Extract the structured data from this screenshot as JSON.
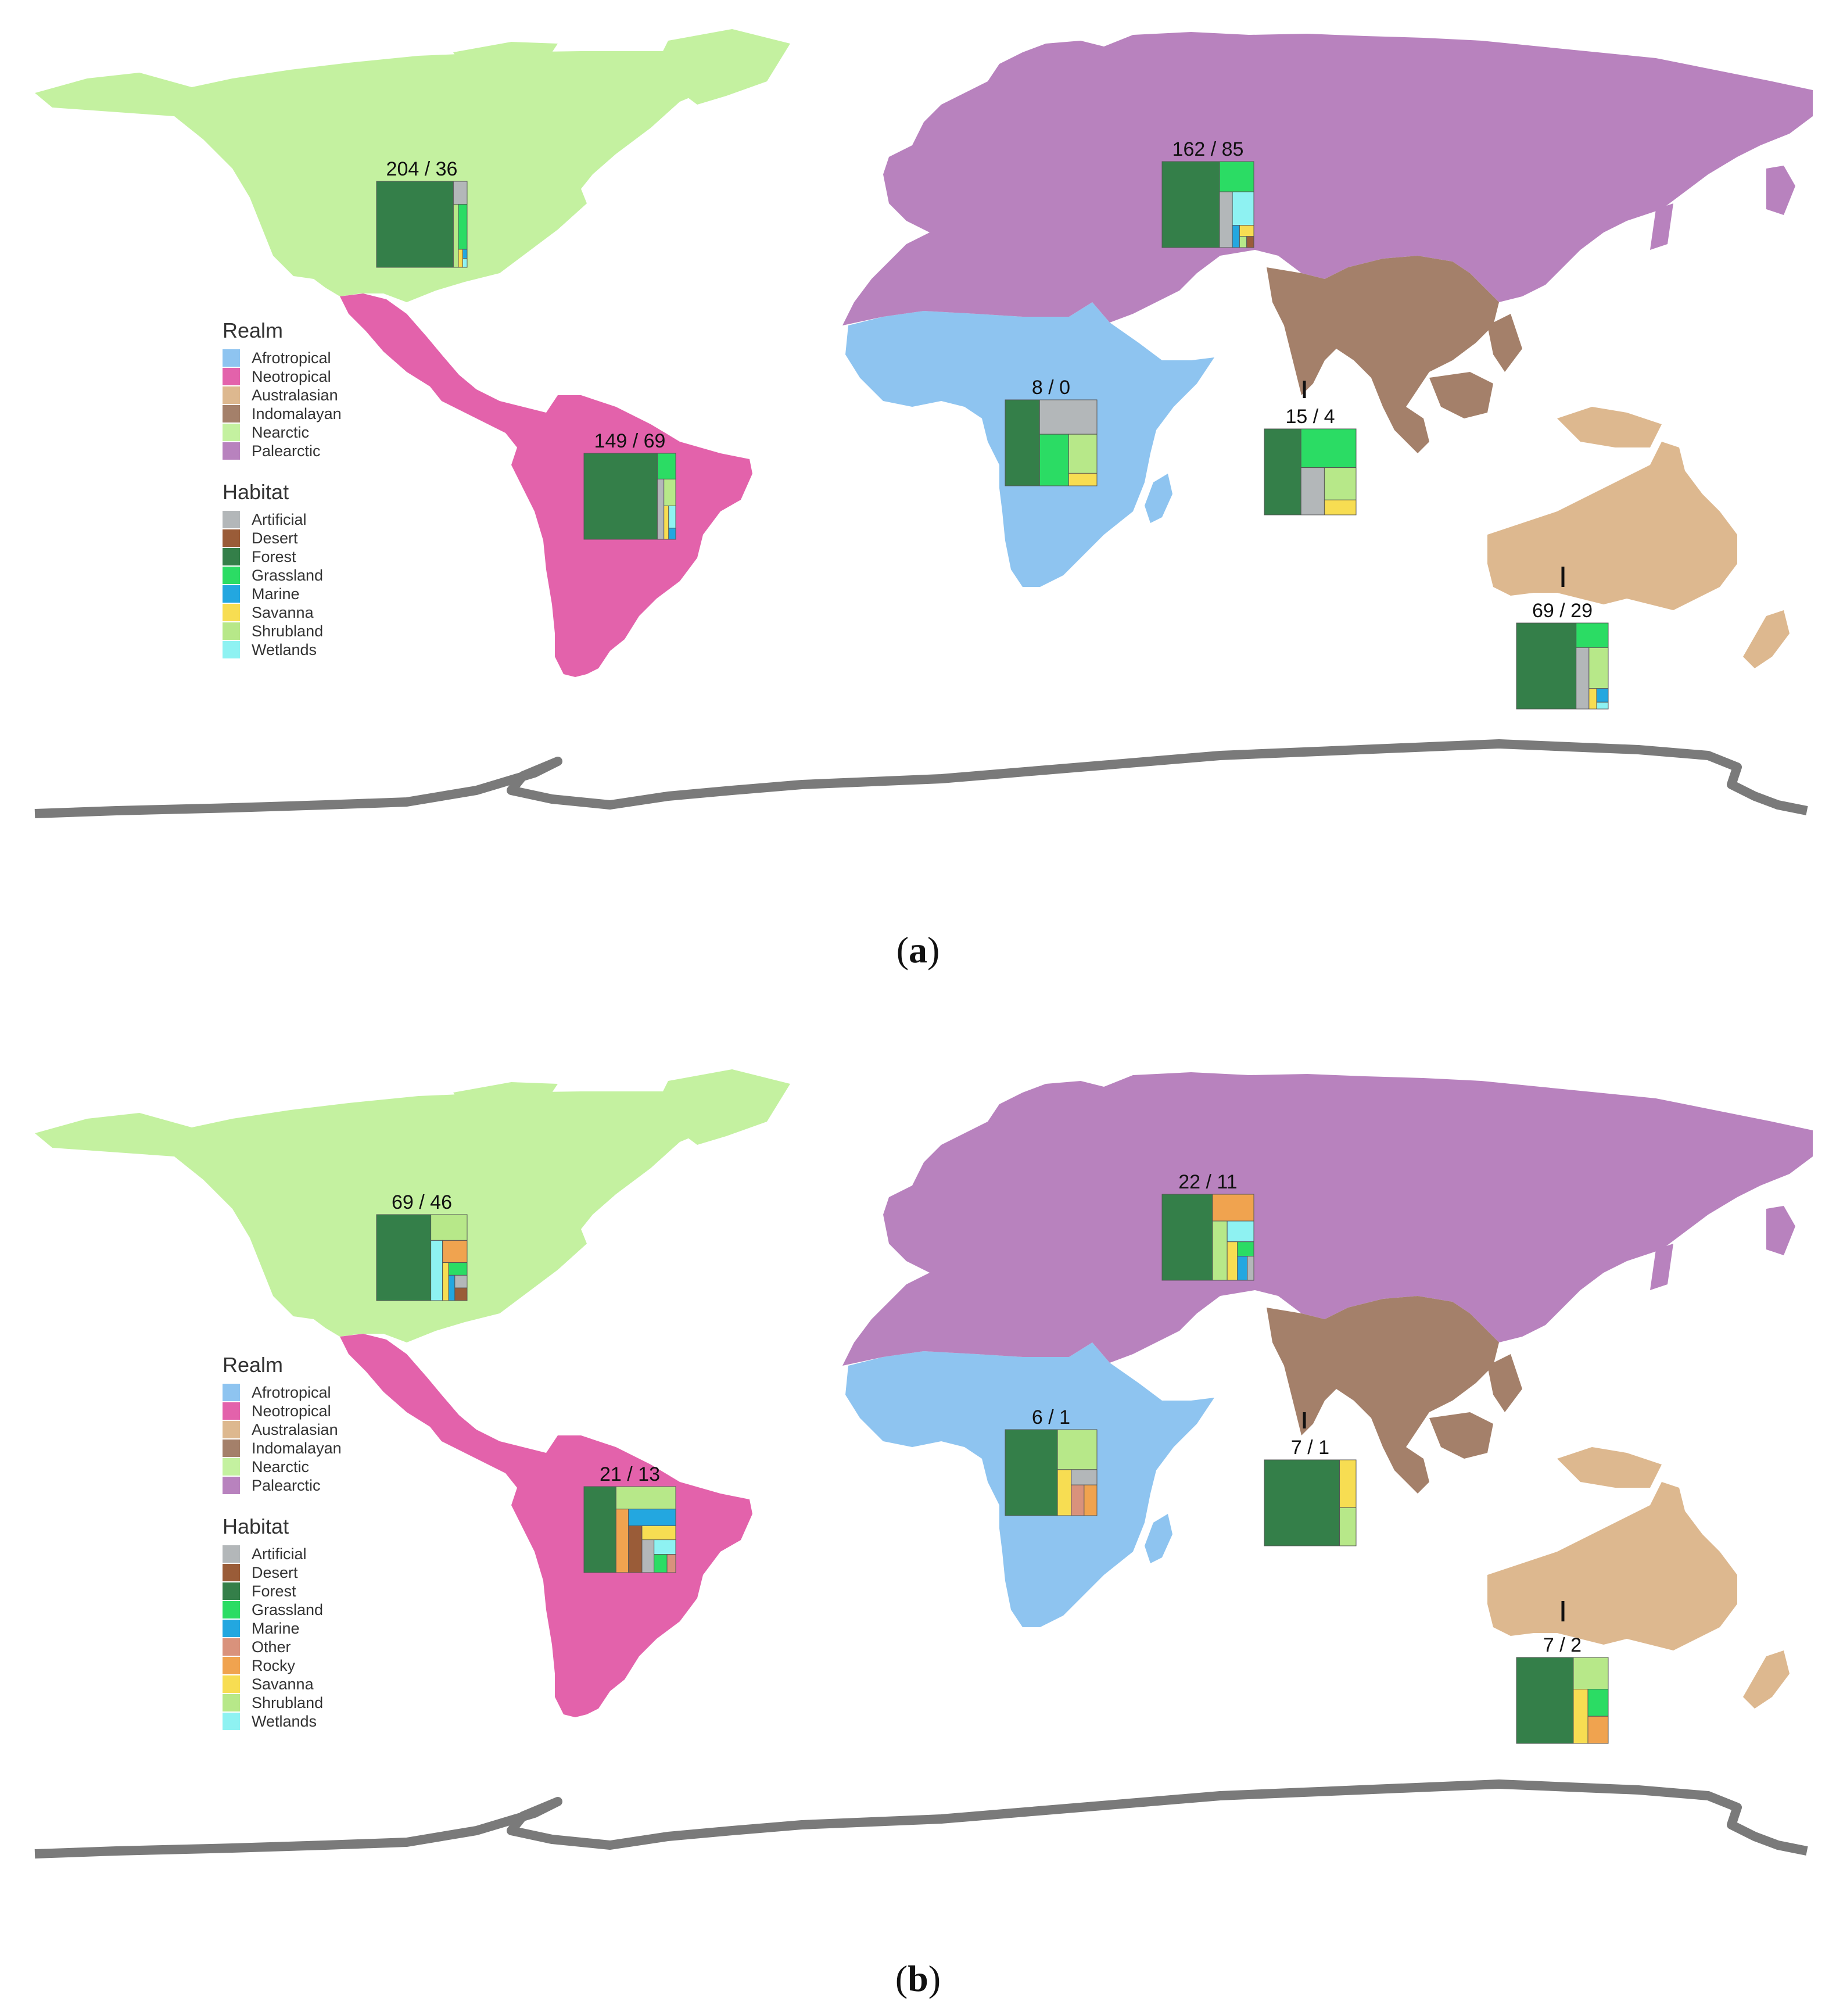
{
  "realm_colors": {
    "Afrotropical": "#8ec4f0",
    "Neotropical": "#e362ab",
    "Australasian": "#ddb88f",
    "Indomalayan": "#a4806a",
    "Nearctic": "#c4f1a0",
    "Palearctic": "#b882be"
  },
  "habitat_colors": {
    "Artificial": "#b3b7b9",
    "Desert": "#9a5c38",
    "Forest": "#347f49",
    "Grassland": "#2bdc64",
    "Marine": "#23a7e0",
    "Other": "#d9927c",
    "Rocky": "#f0a34f",
    "Savanna": "#f7dd52",
    "Shrubland": "#b7e889",
    "Wetlands": "#8ef2f2"
  },
  "antarctica_color": "#7a7a7a",
  "panels": [
    {
      "id": "a",
      "caption_label": "a",
      "legend": {
        "realm_title": "Realm",
        "realm_items": [
          "Afrotropical",
          "Neotropical",
          "Australasian",
          "Indomalayan",
          "Nearctic",
          "Palearctic"
        ],
        "habitat_title": "Habitat",
        "habitat_items": [
          "Artificial",
          "Desert",
          "Forest",
          "Grassland",
          "Marine",
          "Savanna",
          "Shrubland",
          "Wetlands"
        ]
      },
      "realms": [
        {
          "realm": "Nearctic",
          "count_label": "204 / 36",
          "pointer": false,
          "treemap": [
            [
              "Forest",
              0.84
            ],
            [
              "Artificial",
              0.04
            ],
            [
              "Shrubland",
              0.04
            ],
            [
              "Grassland",
              0.05
            ],
            [
              "Savanna",
              0.01
            ],
            [
              "Marine",
              0.005
            ],
            [
              "Wetlands",
              0.005
            ]
          ]
        },
        {
          "realm": "Palearctic",
          "count_label": "162 / 85",
          "pointer": false,
          "treemap": [
            [
              "Forest",
              0.62
            ],
            [
              "Grassland",
              0.13
            ],
            [
              "Artificial",
              0.09
            ],
            [
              "Wetlands",
              0.09
            ],
            [
              "Marine",
              0.02
            ],
            [
              "Savanna",
              0.02
            ],
            [
              "Shrubland",
              0.01
            ],
            [
              "Desert",
              0.01
            ]
          ]
        },
        {
          "realm": "Neotropical",
          "count_label": "149 / 69",
          "pointer": false,
          "treemap": [
            [
              "Forest",
              0.8
            ],
            [
              "Grassland",
              0.06
            ],
            [
              "Artificial",
              0.05
            ],
            [
              "Shrubland",
              0.04
            ],
            [
              "Savanna",
              0.02
            ],
            [
              "Wetlands",
              0.02
            ],
            [
              "Marine",
              0.01
            ]
          ]
        },
        {
          "realm": "Afrotropical",
          "count_label": "8 / 0",
          "pointer": false,
          "treemap": [
            [
              "Forest",
              0.375
            ],
            [
              "Artificial",
              0.25
            ],
            [
              "Grassland",
              0.19
            ],
            [
              "Shrubland",
              0.14
            ],
            [
              "Savanna",
              0.045
            ]
          ]
        },
        {
          "realm": "Indomalayan",
          "count_label": "15 / 4",
          "pointer": true,
          "treemap": [
            [
              "Forest",
              0.4
            ],
            [
              "Grassland",
              0.27
            ],
            [
              "Artificial",
              0.14
            ],
            [
              "Shrubland",
              0.13
            ],
            [
              "Savanna",
              0.06
            ]
          ]
        },
        {
          "realm": "Australasian",
          "count_label": "69 / 29",
          "pointer": true,
          "treemap": [
            [
              "Forest",
              0.65
            ],
            [
              "Grassland",
              0.1
            ],
            [
              "Artificial",
              0.1
            ],
            [
              "Shrubland",
              0.1
            ],
            [
              "Savanna",
              0.02
            ],
            [
              "Marine",
              0.02
            ],
            [
              "Wetlands",
              0.01
            ]
          ]
        }
      ]
    },
    {
      "id": "b",
      "caption_label": "b",
      "legend": {
        "realm_title": "Realm",
        "realm_items": [
          "Afrotropical",
          "Neotropical",
          "Australasian",
          "Indomalayan",
          "Nearctic",
          "Palearctic"
        ],
        "habitat_title": "Habitat",
        "habitat_items": [
          "Artificial",
          "Desert",
          "Forest",
          "Grassland",
          "Marine",
          "Other",
          "Rocky",
          "Savanna",
          "Shrubland",
          "Wetlands"
        ]
      },
      "realms": [
        {
          "realm": "Nearctic",
          "count_label": "69 / 46",
          "pointer": false,
          "treemap": [
            [
              "Forest",
              0.6
            ],
            [
              "Shrubland",
              0.12
            ],
            [
              "Wetlands",
              0.09
            ],
            [
              "Rocky",
              0.07
            ],
            [
              "Savanna",
              0.03
            ],
            [
              "Grassland",
              0.03
            ],
            [
              "Marine",
              0.02
            ],
            [
              "Artificial",
              0.02
            ],
            [
              "Desert",
              0.02
            ]
          ]
        },
        {
          "realm": "Palearctic",
          "count_label": "22 / 11",
          "pointer": false,
          "treemap": [
            [
              "Forest",
              0.55
            ],
            [
              "Rocky",
              0.14
            ],
            [
              "Shrubland",
              0.11
            ],
            [
              "Wetlands",
              0.07
            ],
            [
              "Savanna",
              0.05
            ],
            [
              "Grassland",
              0.03
            ],
            [
              "Marine",
              0.03
            ],
            [
              "Artificial",
              0.02
            ]
          ]
        },
        {
          "realm": "Neotropical",
          "count_label": "21 / 13",
          "pointer": false,
          "treemap": [
            [
              "Forest",
              0.35
            ],
            [
              "Shrubland",
              0.17
            ],
            [
              "Rocky",
              0.1
            ],
            [
              "Marine",
              0.1
            ],
            [
              "Desert",
              0.08
            ],
            [
              "Savanna",
              0.06
            ],
            [
              "Artificial",
              0.05
            ],
            [
              "Wetlands",
              0.04
            ],
            [
              "Grassland",
              0.03
            ],
            [
              "Other",
              0.02
            ]
          ]
        },
        {
          "realm": "Afrotropical",
          "count_label": "6 / 1",
          "pointer": false,
          "treemap": [
            [
              "Forest",
              0.57
            ],
            [
              "Shrubland",
              0.2
            ],
            [
              "Savanna",
              0.08
            ],
            [
              "Artificial",
              0.05
            ],
            [
              "Other",
              0.05
            ],
            [
              "Rocky",
              0.05
            ]
          ]
        },
        {
          "realm": "Indomalayan",
          "count_label": "7 / 1",
          "pointer": true,
          "treemap": [
            [
              "Forest",
              0.82
            ],
            [
              "Savanna",
              0.1
            ],
            [
              "Shrubland",
              0.08
            ]
          ]
        },
        {
          "realm": "Australasian",
          "count_label": "7 / 2",
          "pointer": true,
          "treemap": [
            [
              "Forest",
              0.62
            ],
            [
              "Shrubland",
              0.14
            ],
            [
              "Savanna",
              0.1
            ],
            [
              "Grassland",
              0.07
            ],
            [
              "Rocky",
              0.07
            ]
          ]
        }
      ]
    }
  ]
}
